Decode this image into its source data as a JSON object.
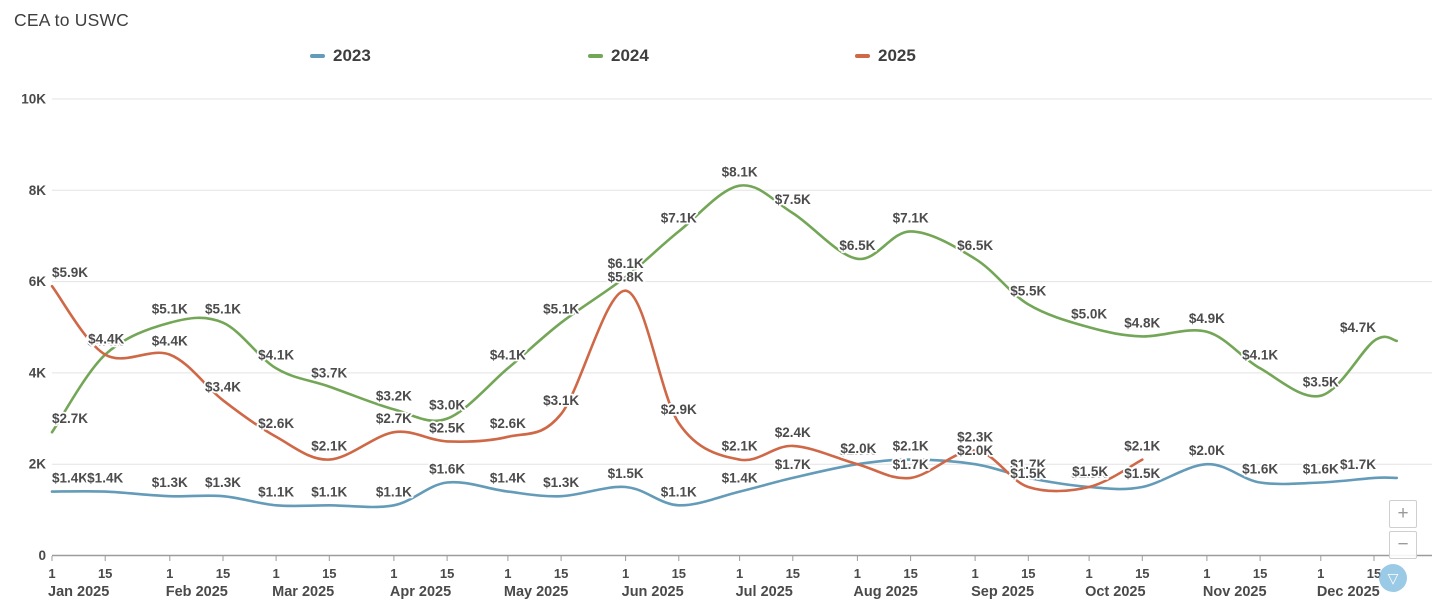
{
  "title": "CEA to USWC",
  "legend": {
    "items": [
      {
        "label": "2023",
        "color": "#639bb9"
      },
      {
        "label": "2024",
        "color": "#73a656"
      },
      {
        "label": "2025",
        "color": "#cf6847"
      }
    ]
  },
  "controls": {
    "zoom_in": "+",
    "zoom_out": "−",
    "collapse": "▽"
  },
  "colors": {
    "grid": "#e3e3e3",
    "axis": "#9b9b9b",
    "axis_text": "#4a4a4a",
    "data_label": "#4c4c4c",
    "background": "#ffffff"
  },
  "chart_data": {
    "type": "line",
    "title": "CEA to USWC",
    "legend_position": "top",
    "grid": "horizontal",
    "x_axis": {
      "unit": "day of year 2025",
      "tick_labels": [
        "1",
        "15"
      ],
      "months": [
        {
          "label": "Jan 2025",
          "d1": 1,
          "d15": 15
        },
        {
          "label": "Feb 2025",
          "d1": 32,
          "d15": 46
        },
        {
          "label": "Mar 2025",
          "d1": 60,
          "d15": 74
        },
        {
          "label": "Apr 2025",
          "d1": 91,
          "d15": 105
        },
        {
          "label": "May 2025",
          "d1": 121,
          "d15": 135
        },
        {
          "label": "Jun 2025",
          "d1": 152,
          "d15": 166
        },
        {
          "label": "Jul 2025",
          "d1": 182,
          "d15": 196
        },
        {
          "label": "Aug 2025",
          "d1": 213,
          "d15": 227
        },
        {
          "label": "Sep 2025",
          "d1": 244,
          "d15": 258
        },
        {
          "label": "Oct 2025",
          "d1": 274,
          "d15": 288
        },
        {
          "label": "Nov 2025",
          "d1": 305,
          "d15": 319
        },
        {
          "label": "Dec 2025",
          "d1": 335,
          "d15": 349
        }
      ]
    },
    "y_axis": {
      "range_usd": [
        0,
        10000
      ],
      "ticks": [
        {
          "label": "0",
          "value_k": 0
        },
        {
          "label": "2K",
          "value_k": 2
        },
        {
          "label": "4K",
          "value_k": 4
        },
        {
          "label": "6K",
          "value_k": 6
        },
        {
          "label": "8K",
          "value_k": 8
        },
        {
          "label": "10K",
          "value_k": 10
        }
      ]
    },
    "series": [
      {
        "name": "2023",
        "color": "#639bb9",
        "extend_to_day": 355,
        "days": [
          1,
          15,
          32,
          46,
          60,
          74,
          91,
          105,
          121,
          135,
          152,
          166,
          182,
          196,
          213,
          227,
          244,
          258,
          274,
          288,
          305,
          319,
          335,
          349
        ],
        "values_k": [
          1.4,
          1.4,
          1.3,
          1.3,
          1.1,
          1.1,
          1.1,
          1.6,
          1.4,
          1.3,
          1.5,
          1.1,
          1.4,
          1.7,
          2.0,
          2.1,
          2.0,
          1.7,
          1.5,
          1.5,
          2.0,
          1.6,
          1.6,
          1.7
        ],
        "labels": [
          "$1.4K",
          "$1.4K",
          "$1.3K",
          "$1.3K",
          "$1.1K",
          "$1.1K",
          "$1.1K",
          "$1.6K",
          "$1.4K",
          "$1.3K",
          "$1.5K",
          "$1.1K",
          "$1.4K",
          "$1.7K",
          "$2.0K",
          "$2.1K",
          "$2.0K",
          "$1.7K",
          "$1.5K",
          "$1.5K",
          "$2.0K",
          "$1.6K",
          "$1.6K",
          "$1.7K"
        ]
      },
      {
        "name": "2024",
        "color": "#73a656",
        "extend_to_day": 355,
        "days": [
          1,
          15,
          32,
          46,
          60,
          74,
          91,
          105,
          121,
          135,
          152,
          166,
          182,
          196,
          213,
          227,
          244,
          258,
          274,
          288,
          305,
          319,
          335,
          349
        ],
        "values_k": [
          2.7,
          4.4,
          5.1,
          5.1,
          4.1,
          3.7,
          3.2,
          3.0,
          4.1,
          5.1,
          6.1,
          7.1,
          8.1,
          7.5,
          6.5,
          7.1,
          6.5,
          5.5,
          5.0,
          4.8,
          4.9,
          4.1,
          3.5,
          4.7
        ],
        "labels": [
          "$2.7K",
          "$4.4K",
          "$5.1K",
          "$5.1K",
          "$4.1K",
          "$3.7K",
          "$3.2K",
          "$3.0K",
          "$4.1K",
          "$5.1K",
          "$6.1K",
          "$7.1K",
          "$8.1K",
          "$7.5K",
          "$6.5K",
          "$7.1K",
          "$6.5K",
          "$5.5K",
          "$5.0K",
          "$4.8K",
          "$4.9K",
          "$4.1K",
          "$3.5K",
          "$4.7K"
        ]
      },
      {
        "name": "2025",
        "color": "#cf6847",
        "days": [
          1,
          15,
          32,
          46,
          60,
          74,
          91,
          105,
          121,
          135,
          152,
          166,
          182,
          196,
          213,
          227,
          244,
          258,
          274,
          288
        ],
        "values_k": [
          5.9,
          4.4,
          4.4,
          3.4,
          2.6,
          2.1,
          2.7,
          2.5,
          2.6,
          3.1,
          5.8,
          2.9,
          2.1,
          2.4,
          2.0,
          1.7,
          2.3,
          1.5,
          1.5,
          2.1
        ],
        "labels": [
          "$5.9K",
          "$4.4K",
          "$4.4K",
          "$3.4K",
          "$2.6K",
          "$2.1K",
          "$2.7K",
          "$2.5K",
          "$2.6K",
          "$3.1K",
          "$5.8K",
          "$2.9K",
          "$2.1K",
          "$2.4K",
          "$2.0K",
          "$1.7K",
          "$2.3K",
          "$1.5K",
          "$1.5K",
          "$2.1K"
        ]
      }
    ]
  }
}
